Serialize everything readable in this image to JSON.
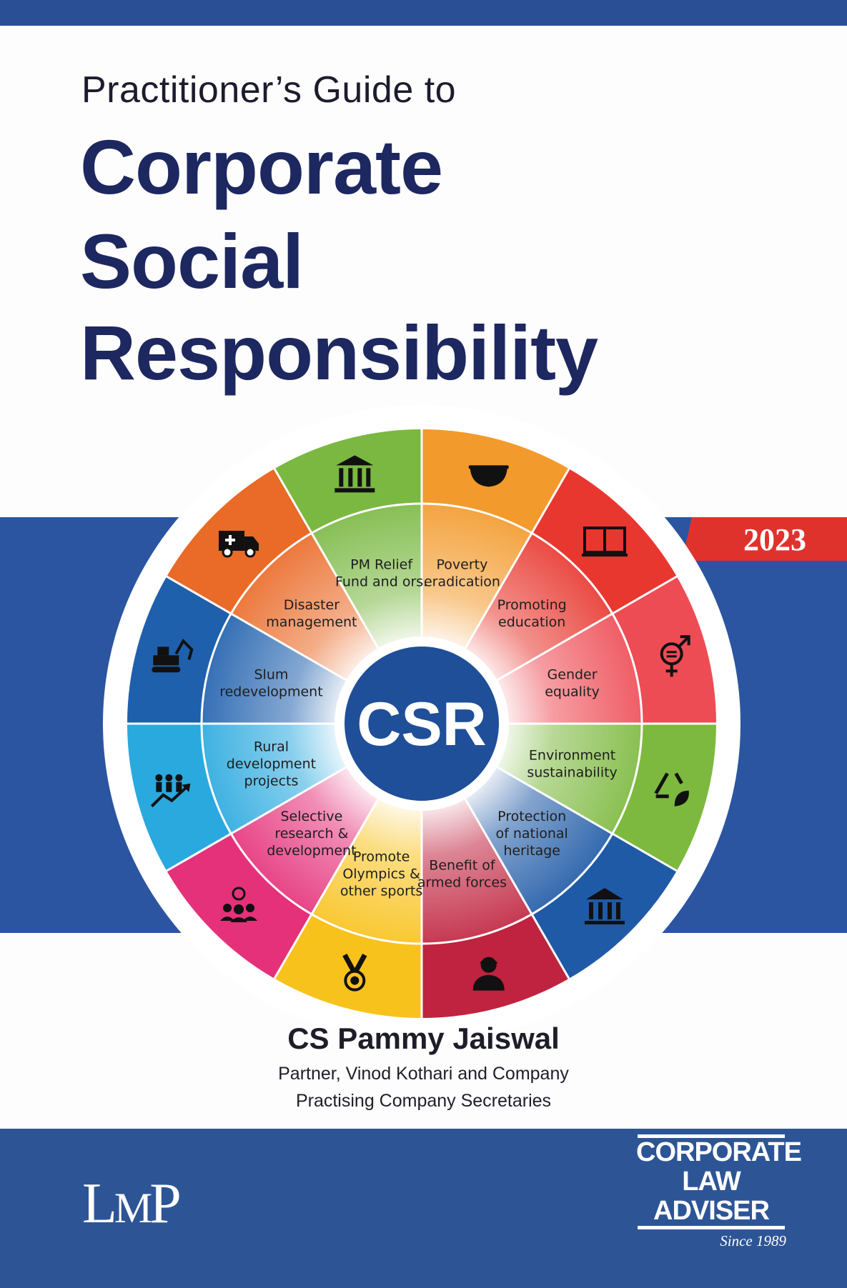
{
  "cover": {
    "subtitle": "Practitioner’s Guide to",
    "title_lines": [
      "Corporate",
      "Social",
      "Responsibility"
    ],
    "year": "2023",
    "author": "CS Pammy Jaiswal",
    "affiliation_1": "Partner, Vinod Kothari and Company",
    "affiliation_2": "Practising Company Secretaries",
    "publisher_logo": "LMP",
    "imprint": {
      "lines": [
        "CORPORATE",
        "LAW",
        "ADVISER"
      ],
      "since": "Since 1989"
    }
  },
  "wheel": {
    "center_label": "CSR",
    "segments": [
      {
        "label": [
          "Poverty",
          "eradication"
        ],
        "color": "#f39a2c",
        "icon": "bowl-icon"
      },
      {
        "label": [
          "Promoting",
          "education"
        ],
        "color": "#e8372f",
        "icon": "book-icon"
      },
      {
        "label": [
          "Gender",
          "equality"
        ],
        "color": "#ee4c55",
        "icon": "gender-equality-icon"
      },
      {
        "label": [
          "Environment",
          "sustainability"
        ],
        "color": "#7db93f",
        "icon": "recycle-leaf-icon"
      },
      {
        "label": [
          "Protection",
          "of national",
          "heritage"
        ],
        "color": "#1f5aa6",
        "icon": "monument-icon"
      },
      {
        "label": [
          "Benefit of",
          "armed forces"
        ],
        "color": "#c0233f",
        "icon": "soldier-icon"
      },
      {
        "label": [
          "Promote",
          "Olympics &",
          "other sports"
        ],
        "color": "#f8c21c",
        "icon": "medal-icon"
      },
      {
        "label": [
          "Selective",
          "research &",
          "development"
        ],
        "color": "#e5317a",
        "icon": "idea-team-icon"
      },
      {
        "label": [
          "Rural",
          "development",
          "projects"
        ],
        "color": "#2aa9df",
        "icon": "people-growth-icon"
      },
      {
        "label": [
          "Slum",
          "redevelopment"
        ],
        "color": "#1f60ad",
        "icon": "excavator-icon"
      },
      {
        "label": [
          "Disaster",
          "management"
        ],
        "color": "#ea6a27",
        "icon": "ambulance-icon"
      },
      {
        "label": [
          "PM Relief",
          "Fund and ors."
        ],
        "color": "#7ab842",
        "icon": "government-building-icon"
      }
    ]
  }
}
